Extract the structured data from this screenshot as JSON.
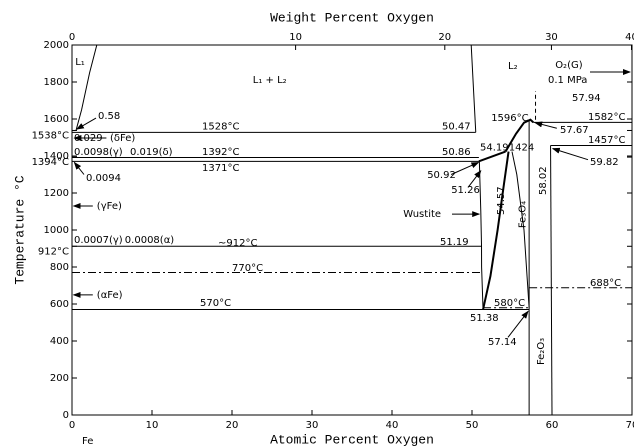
{
  "chart_data": {
    "type": "line",
    "xlabel": "Atomic Percent Oxygen",
    "x2label": "Weight Percent Oxygen",
    "ylabel": "Temperature °C",
    "xlim": [
      0,
      70
    ],
    "ylim": [
      0,
      2000
    ],
    "xticks": [
      0,
      10,
      20,
      30,
      40,
      50,
      60,
      70
    ],
    "x2ticks": [
      {
        "value": 0,
        "label": "0"
      },
      {
        "value": 27.95,
        "label": "10"
      },
      {
        "value": 46.6,
        "label": "20"
      },
      {
        "value": 59.93,
        "label": "30"
      },
      {
        "value": 69.94,
        "label": "40"
      }
    ],
    "yticks": [
      0,
      200,
      400,
      600,
      800,
      1000,
      1200,
      1400,
      1600,
      1800,
      2000,
      {
        "value": 1538,
        "label": "1538°C"
      },
      {
        "value": 1394,
        "label": "1394°C"
      },
      {
        "value": 912,
        "label": "912°C"
      }
    ],
    "grid": false,
    "color": "#000000",
    "series": [
      {
        "x": [
          0.5,
          1.2,
          2.2,
          3.1
        ],
        "values": [
          1538,
          1650,
          1850,
          2000
        ],
        "style": "solid"
      },
      {
        "x": [
          50.47,
          50.2,
          49.9
        ],
        "values": [
          1528,
          1750,
          2000
        ],
        "style": "solid"
      },
      {
        "x": [
          0,
          50.47
        ],
        "values": [
          1528,
          1528
        ],
        "style": "solid"
      },
      {
        "x": [
          0,
          50.86
        ],
        "values": [
          1392,
          1392
        ],
        "style": "solid"
      },
      {
        "x": [
          0,
          50.92
        ],
        "values": [
          1371,
          1371
        ],
        "style": "solid"
      },
      {
        "x": [
          50.86,
          54.19
        ],
        "values": [
          1371,
          1424
        ],
        "style": "bold"
      },
      {
        "x": [
          54.19,
          55.5,
          56.5,
          57.3,
          57.67
        ],
        "values": [
          1424,
          1520,
          1580,
          1596,
          1582
        ],
        "style": "bold"
      },
      {
        "x": [
          51.38,
          51.2,
          51.19,
          51.1,
          51.0,
          50.92
        ],
        "values": [
          570,
          800,
          912,
          1100,
          1250,
          1371
        ],
        "style": "solid"
      },
      {
        "x": [
          51.38,
          52.3,
          53.2,
          54.0,
          54.57
        ],
        "values": [
          570,
          750,
          1000,
          1250,
          1424
        ],
        "style": "bold"
      },
      {
        "x": [
          57.14,
          56.5,
          55.6,
          55.0
        ],
        "values": [
          580,
          1000,
          1300,
          1424
        ],
        "style": "solid"
      },
      {
        "x": [
          57.14,
          57.14
        ],
        "values": [
          0,
          1596
        ],
        "style": "solid"
      },
      {
        "x": [
          60,
          59.82
        ],
        "values": [
          0,
          1457
        ],
        "style": "solid"
      },
      {
        "x": [
          57.67,
          70
        ],
        "values": [
          1582,
          1582
        ],
        "style": "solid"
      },
      {
        "x": [
          59.82,
          70
        ],
        "values": [
          1457,
          1457
        ],
        "style": "solid"
      },
      {
        "x": [
          57.94,
          57.94
        ],
        "values": [
          1596,
          1750
        ],
        "style": "dashed"
      },
      {
        "x": [
          0,
          51.19
        ],
        "values": [
          912,
          912
        ],
        "style": "solid"
      },
      {
        "x": [
          0,
          51.0
        ],
        "values": [
          770,
          770
        ],
        "style": "dashdot"
      },
      {
        "x": [
          0,
          57.14
        ],
        "values": [
          570,
          570
        ],
        "style": "solid"
      },
      {
        "x": [
          51.38,
          57.14
        ],
        "values": [
          580,
          580
        ],
        "style": "dashdot"
      },
      {
        "x": [
          57.14,
          70
        ],
        "values": [
          688,
          688
        ],
        "style": "dashdot"
      }
    ],
    "annotations": [
      {
        "text": "L₁",
        "x": 0.4,
        "y": 1908
      },
      {
        "text": "L₁ + L₂",
        "x": 22.6,
        "y": 1811
      },
      {
        "text": "L₂",
        "x": 54.5,
        "y": 1886
      },
      {
        "text": "O₂(G)",
        "x": 60.4,
        "y": 1892,
        "arrow": [
          64.75,
          1854,
          69.75,
          1854
        ]
      },
      {
        "text": "0.1 MPa",
        "x": 59.5,
        "y": 1811
      },
      {
        "text": "0.58",
        "x": 3.25,
        "y": 1616,
        "arrow": [
          3,
          1605,
          0.6,
          1545
        ]
      },
      {
        "text": "1528°C",
        "x": 16.25,
        "y": 1560
      },
      {
        "text": "50.47",
        "x": 46.25,
        "y": 1560
      },
      {
        "text": "1596°C",
        "x": 52.4,
        "y": 1605
      },
      {
        "text": "57.94",
        "x": 62.5,
        "y": 1714
      },
      {
        "text": "1582°C",
        "x": 64.5,
        "y": 1610
      },
      {
        "text": "57.67",
        "x": 61,
        "y": 1541,
        "arrow": [
          60.6,
          1550,
          57.9,
          1580
        ]
      },
      {
        "text": "0.029",
        "x": 0.25,
        "y": 1497
      },
      {
        "text": "(δFe)",
        "x": 4.75,
        "y": 1497,
        "arrow": [
          4.3,
          1497,
          0.3,
          1497
        ]
      },
      {
        "text": "0.0098(γ)",
        "x": 0.25,
        "y": 1422
      },
      {
        "text": "0.019(δ)",
        "x": 7.25,
        "y": 1422
      },
      {
        "text": "1392°C",
        "x": 16.25,
        "y": 1422
      },
      {
        "text": "50.86",
        "x": 46.25,
        "y": 1422
      },
      {
        "text": "54.19",
        "x": 51,
        "y": 1447
      },
      {
        "text": "1424",
        "x": 54.6,
        "y": 1447
      },
      {
        "text": "1457°C",
        "x": 64.5,
        "y": 1486
      },
      {
        "text": "1371°C",
        "x": 16.25,
        "y": 1335
      },
      {
        "text": "0.0094",
        "x": 1.75,
        "y": 1281,
        "arrow": [
          1.5,
          1300,
          0.3,
          1365
        ]
      },
      {
        "text": "50.92",
        "x": 44.4,
        "y": 1297,
        "arrow": [
          47.4,
          1300,
          50.8,
          1365
        ]
      },
      {
        "text": "51.26",
        "x": 47.4,
        "y": 1216,
        "arrow": [
          49.5,
          1230,
          51.1,
          1320
        ]
      },
      {
        "text": "54.57",
        "x": 53.6,
        "y": 1081,
        "rotated": true
      },
      {
        "text": "58.02",
        "x": 58.9,
        "y": 1189,
        "rotated": true
      },
      {
        "text": "59.82",
        "x": 64.75,
        "y": 1368,
        "arrow": [
          64.5,
          1380,
          60.1,
          1440
        ]
      },
      {
        "text": "(γFe)",
        "x": 3.1,
        "y": 1130,
        "arrow": [
          2.6,
          1130,
          0.2,
          1130
        ]
      },
      {
        "text": "Wustite",
        "x": 41.4,
        "y": 1086,
        "arrow": [
          47.5,
          1086,
          50.9,
          1086
        ]
      },
      {
        "text": "Fe₃O₄",
        "x": 56.3,
        "y": 1010,
        "rotated": true
      },
      {
        "text": "0.0007(γ)",
        "x": 0.25,
        "y": 946
      },
      {
        "text": "0.0008(α)",
        "x": 6.6,
        "y": 946
      },
      {
        "text": "~912°C",
        "x": 18.25,
        "y": 930
      },
      {
        "text": "51.19",
        "x": 46,
        "y": 935
      },
      {
        "text": "770°C",
        "x": 20,
        "y": 795
      },
      {
        "text": "688°C",
        "x": 64.75,
        "y": 714
      },
      {
        "text": "(αFe)",
        "x": 3.1,
        "y": 649,
        "arrow": [
          2.6,
          649,
          0.2,
          649
        ]
      },
      {
        "text": "570°C",
        "x": 16,
        "y": 605
      },
      {
        "text": "580°C",
        "x": 52.75,
        "y": 605
      },
      {
        "text": "51.38",
        "x": 49.75,
        "y": 524
      },
      {
        "text": "57.14",
        "x": 52,
        "y": 395,
        "arrow": [
          54.5,
          420,
          57.0,
          560
        ]
      },
      {
        "text": "Fe₂O₃",
        "x": 58.6,
        "y": 270,
        "rotated": true
      },
      {
        "text": "Fe",
        "x": 1.25,
        "y": -140
      }
    ]
  }
}
